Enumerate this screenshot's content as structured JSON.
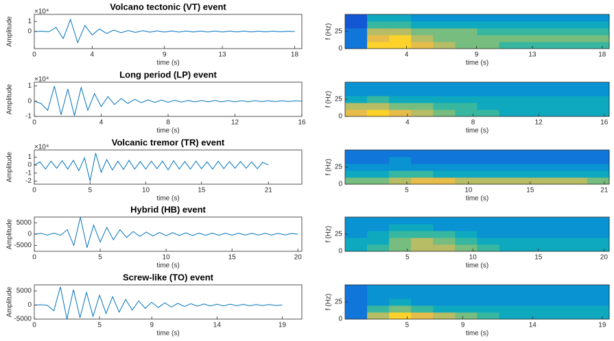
{
  "chart_data": [
    {
      "type": "line",
      "title": "Volcano tectonic (VT) event",
      "xlabel": "time (s)",
      "ylabel": "Amplitude",
      "exponent_label": "×10⁴",
      "color": "#0072bd",
      "xlim": [
        0,
        18.5
      ],
      "xticks": [
        0,
        4,
        9,
        13,
        18
      ],
      "ylim": [
        -17000,
        17000
      ],
      "yticks": [
        0,
        {
          "value": 10000,
          "label": "1"
        }
      ],
      "x": [
        0,
        0.5,
        1,
        1.5,
        2,
        2.5,
        3,
        3.5,
        4,
        4.5,
        5,
        5.5,
        6,
        6.5,
        7,
        7.5,
        8,
        8.5,
        9,
        9.5,
        10,
        10.5,
        11,
        11.5,
        12,
        12.5,
        13,
        13.5,
        14,
        14.5,
        15,
        15.5,
        16,
        16.5,
        17,
        17.5,
        18
      ],
      "values": [
        0,
        300,
        -300,
        4000,
        -7000,
        12000,
        -11000,
        6000,
        -3500,
        2500,
        -2000,
        1500,
        -1200,
        1000,
        -900,
        800,
        -700,
        700,
        -600,
        600,
        -600,
        500,
        -500,
        500,
        -500,
        450,
        -450,
        400,
        -400,
        400,
        -400,
        350,
        -350,
        350,
        -300,
        300,
        0
      ]
    },
    {
      "type": "heatmap",
      "xlabel": "time (s)",
      "ylabel": "f (Hz)",
      "xlim": [
        -0.4,
        18.5
      ],
      "xticks": [
        4,
        9,
        13,
        18
      ],
      "ylim": [
        0,
        50
      ],
      "yticks": [
        0,
        25
      ],
      "zlim": [
        0,
        10
      ],
      "z": [
        [
          2,
          9,
          9,
          8,
          7,
          6,
          6,
          5,
          5,
          5,
          5,
          5
        ],
        [
          2,
          8,
          9,
          7,
          6,
          6,
          6,
          6,
          6,
          6,
          6,
          6
        ],
        [
          2,
          7,
          7,
          6,
          6,
          6,
          5,
          5,
          5,
          5,
          5,
          5
        ],
        [
          1,
          5,
          5,
          4,
          4,
          4,
          4,
          4,
          4,
          4,
          4,
          4
        ],
        [
          1,
          4,
          4,
          3,
          3,
          3,
          3,
          3,
          3,
          3,
          3,
          3
        ]
      ]
    },
    {
      "type": "line",
      "title": "Long period (LP) event",
      "xlabel": "time (s)",
      "ylabel": "Amplitude",
      "exponent_label": "×10⁴",
      "color": "#0072bd",
      "xlim": [
        0,
        16
      ],
      "xticks": [
        0,
        4,
        8,
        12,
        16
      ],
      "ylim": [
        -10000,
        12500
      ],
      "yticks": [
        {
          "value": -10000,
          "label": "-1"
        },
        0,
        {
          "value": 10000,
          "label": "1"
        }
      ],
      "x": [
        0,
        0.4,
        0.8,
        1.2,
        1.6,
        2,
        2.4,
        2.8,
        3.2,
        3.6,
        4,
        4.4,
        4.8,
        5.2,
        5.6,
        6,
        6.4,
        6.8,
        7.2,
        7.6,
        8,
        8.4,
        8.8,
        9.2,
        9.6,
        10,
        10.4,
        10.8,
        11.2,
        11.6,
        12,
        12.4,
        12.8,
        13.2,
        13.6,
        14,
        14.4,
        14.8,
        15.2,
        15.6,
        16
      ],
      "values": [
        0,
        -1500,
        -6000,
        10000,
        -9000,
        8000,
        -9500,
        9000,
        -6000,
        5000,
        -3500,
        3000,
        -2200,
        1800,
        -1500,
        1200,
        -1000,
        900,
        -800,
        700,
        -700,
        600,
        -600,
        500,
        -500,
        500,
        -450,
        450,
        -400,
        400,
        -400,
        350,
        -350,
        350,
        -300,
        300,
        -300,
        300,
        -250,
        250,
        0
      ]
    },
    {
      "type": "heatmap",
      "xlabel": "time (s)",
      "ylabel": "f (Hz)",
      "xlim": [
        0.2,
        16.3
      ],
      "xticks": [
        4,
        8,
        12,
        16
      ],
      "ylim": [
        0,
        50
      ],
      "yticks": [
        0,
        25
      ],
      "zlim": [
        0,
        10
      ],
      "z": [
        [
          8,
          9,
          8,
          7,
          6,
          5,
          5,
          4,
          4,
          4,
          4,
          4
        ],
        [
          7,
          7,
          6,
          6,
          5,
          5,
          4,
          4,
          4,
          4,
          4,
          4
        ],
        [
          4,
          5,
          4,
          4,
          4,
          4,
          4,
          4,
          4,
          4,
          4,
          4
        ],
        [
          3,
          3,
          3,
          3,
          3,
          3,
          3,
          3,
          3,
          3,
          3,
          3
        ],
        [
          3,
          3,
          3,
          3,
          3,
          3,
          3,
          3,
          3,
          3,
          3,
          3
        ]
      ]
    },
    {
      "type": "line",
      "title": "Volcanic tremor (TR) event",
      "xlabel": "time (s)",
      "ylabel": "Amplitude",
      "exponent_label": "×10⁴",
      "color": "#0072bd",
      "xlim": [
        0,
        24
      ],
      "xticks": [
        0,
        5,
        10,
        15,
        21
      ],
      "ylim": [
        -24000,
        19000
      ],
      "yticks": [
        {
          "value": -20000,
          "label": "-2"
        },
        {
          "value": -10000,
          "label": "-1"
        },
        0,
        {
          "value": 10000,
          "label": "1"
        }
      ],
      "x": [
        0,
        0.5,
        1,
        1.5,
        2,
        2.5,
        3,
        3.5,
        4,
        4.5,
        5,
        5.5,
        6,
        6.5,
        7,
        7.5,
        8,
        8.5,
        9,
        9.5,
        10,
        10.5,
        11,
        11.5,
        12,
        12.5,
        13,
        13.5,
        14,
        14.5,
        15,
        15.5,
        16,
        16.5,
        17,
        17.5,
        18,
        18.5,
        19,
        19.5,
        20,
        20.5,
        21
      ],
      "values": [
        0,
        4000,
        -5000,
        5000,
        -4000,
        5500,
        -5000,
        6000,
        -7000,
        9000,
        -20000,
        15000,
        -9000,
        7000,
        -6000,
        5000,
        -5500,
        6000,
        -5000,
        4500,
        -5000,
        5000,
        -4500,
        5000,
        -6000,
        5500,
        -5000,
        4500,
        -5000,
        5000,
        -4500,
        4000,
        -5000,
        5000,
        -4500,
        4500,
        -4000,
        4500,
        -4000,
        4000,
        -4500,
        3500,
        0
      ]
    },
    {
      "type": "heatmap",
      "xlabel": "time (s)",
      "ylabel": "f (Hz)",
      "xlim": [
        0,
        21.4
      ],
      "xticks": [
        5,
        10,
        15,
        21
      ],
      "ylim": [
        0,
        50
      ],
      "yticks": [
        0,
        25
      ],
      "zlim": [
        0,
        10
      ],
      "z": [
        [
          6,
          6,
          7,
          8,
          8,
          7,
          7,
          7,
          7,
          7,
          7,
          6
        ],
        [
          4,
          4,
          5,
          5,
          4,
          4,
          4,
          4,
          4,
          4,
          4,
          4
        ],
        [
          3,
          3,
          3,
          3,
          3,
          3,
          3,
          3,
          3,
          3,
          3,
          3
        ],
        [
          2,
          2,
          3,
          2,
          2,
          2,
          2,
          2,
          2,
          2,
          2,
          2
        ],
        [
          2,
          2,
          2,
          2,
          2,
          2,
          2,
          2,
          2,
          2,
          2,
          2
        ]
      ]
    },
    {
      "type": "line",
      "title": "Hybrid (HB) event",
      "xlabel": "time (s)",
      "ylabel": "Amplitude",
      "color": "#0072bd",
      "xlim": [
        0,
        20.3
      ],
      "xticks": [
        0,
        5,
        10,
        15,
        20
      ],
      "ylim": [
        -7600,
        7600
      ],
      "yticks": [
        -5000,
        0,
        5000
      ],
      "x": [
        0,
        0.5,
        1,
        1.5,
        2,
        2.5,
        3,
        3.5,
        4,
        4.5,
        5,
        5.5,
        6,
        6.5,
        7,
        7.5,
        8,
        8.5,
        9,
        9.5,
        10,
        10.5,
        11,
        11.5,
        12,
        12.5,
        13,
        13.5,
        14,
        14.5,
        15,
        15.5,
        16,
        16.5,
        17,
        17.5,
        18,
        18.5,
        19,
        19.5,
        20
      ],
      "values": [
        0,
        400,
        -400,
        500,
        -500,
        2000,
        -5000,
        7500,
        -6000,
        4000,
        -3500,
        3000,
        -2500,
        2000,
        -1500,
        1200,
        -1000,
        900,
        -800,
        800,
        -700,
        700,
        -600,
        600,
        -600,
        500,
        -500,
        500,
        -500,
        450,
        -450,
        450,
        -400,
        400,
        -400,
        400,
        -350,
        350,
        -350,
        300,
        0
      ]
    },
    {
      "type": "heatmap",
      "xlabel": "time (s)",
      "ylabel": "f (Hz)",
      "xlim": [
        0.25,
        20.4
      ],
      "xticks": [
        5,
        10,
        15,
        20
      ],
      "ylim": [
        0,
        50
      ],
      "yticks": [
        0,
        25
      ],
      "zlim": [
        0,
        10
      ],
      "z": [
        [
          4,
          5,
          6,
          7,
          7,
          6,
          5,
          4,
          4,
          4,
          4,
          4
        ],
        [
          4,
          4,
          6,
          7,
          6,
          5,
          4,
          4,
          4,
          4,
          4,
          4
        ],
        [
          3,
          4,
          5,
          5,
          5,
          4,
          3,
          3,
          3,
          3,
          3,
          3
        ],
        [
          3,
          3,
          4,
          4,
          3,
          3,
          3,
          3,
          3,
          3,
          3,
          3
        ],
        [
          3,
          3,
          3,
          3,
          3,
          3,
          3,
          3,
          3,
          3,
          3,
          3
        ]
      ]
    },
    {
      "type": "line",
      "title": "Screw-like (TO) event",
      "xlabel": "time (s)",
      "ylabel": "Amplitude",
      "color": "#0072bd",
      "xlim": [
        0,
        20.5
      ],
      "xticks": [
        0,
        5,
        9,
        14,
        19
      ],
      "ylim": [
        -5000,
        7200
      ],
      "yticks": [
        -5000,
        0,
        5000
      ],
      "x": [
        0,
        0.5,
        1,
        1.5,
        2,
        2.5,
        3,
        3.5,
        4,
        4.5,
        5,
        5.5,
        6,
        6.5,
        7,
        7.5,
        8,
        8.5,
        9,
        9.5,
        10,
        10.5,
        11,
        11.5,
        12,
        12.5,
        13,
        13.5,
        14,
        14.5,
        15,
        15.5,
        16,
        16.5,
        17,
        17.5,
        18,
        18.5,
        19
      ],
      "values": [
        0,
        100,
        -100,
        -2000,
        6500,
        -5000,
        5500,
        -4500,
        4500,
        -4000,
        3500,
        -3000,
        3000,
        -2500,
        2000,
        -1800,
        1500,
        -1200,
        1000,
        -900,
        800,
        -700,
        600,
        -500,
        500,
        -400,
        400,
        -350,
        300,
        -300,
        300,
        -250,
        250,
        -250,
        200,
        -200,
        200,
        -150,
        0
      ]
    },
    {
      "type": "heatmap",
      "xlabel": "time (s)",
      "ylabel": "f (Hz)",
      "xlim": [
        0.55,
        19.5
      ],
      "xticks": [
        5,
        9,
        14,
        19
      ],
      "ylim": [
        0,
        50
      ],
      "yticks": [
        0,
        25
      ],
      "zlim": [
        0,
        10
      ],
      "z": [
        [
          2,
          7,
          9,
          8,
          7,
          6,
          5,
          4,
          4,
          4,
          4,
          4
        ],
        [
          2,
          5,
          6,
          5,
          4,
          4,
          4,
          4,
          4,
          4,
          4,
          4
        ],
        [
          2,
          3,
          4,
          3,
          3,
          3,
          3,
          3,
          3,
          3,
          3,
          3
        ],
        [
          2,
          3,
          3,
          3,
          3,
          3,
          3,
          3,
          3,
          3,
          3,
          3
        ],
        [
          2,
          3,
          3,
          3,
          3,
          3,
          3,
          3,
          3,
          3,
          3,
          3
        ]
      ]
    }
  ]
}
